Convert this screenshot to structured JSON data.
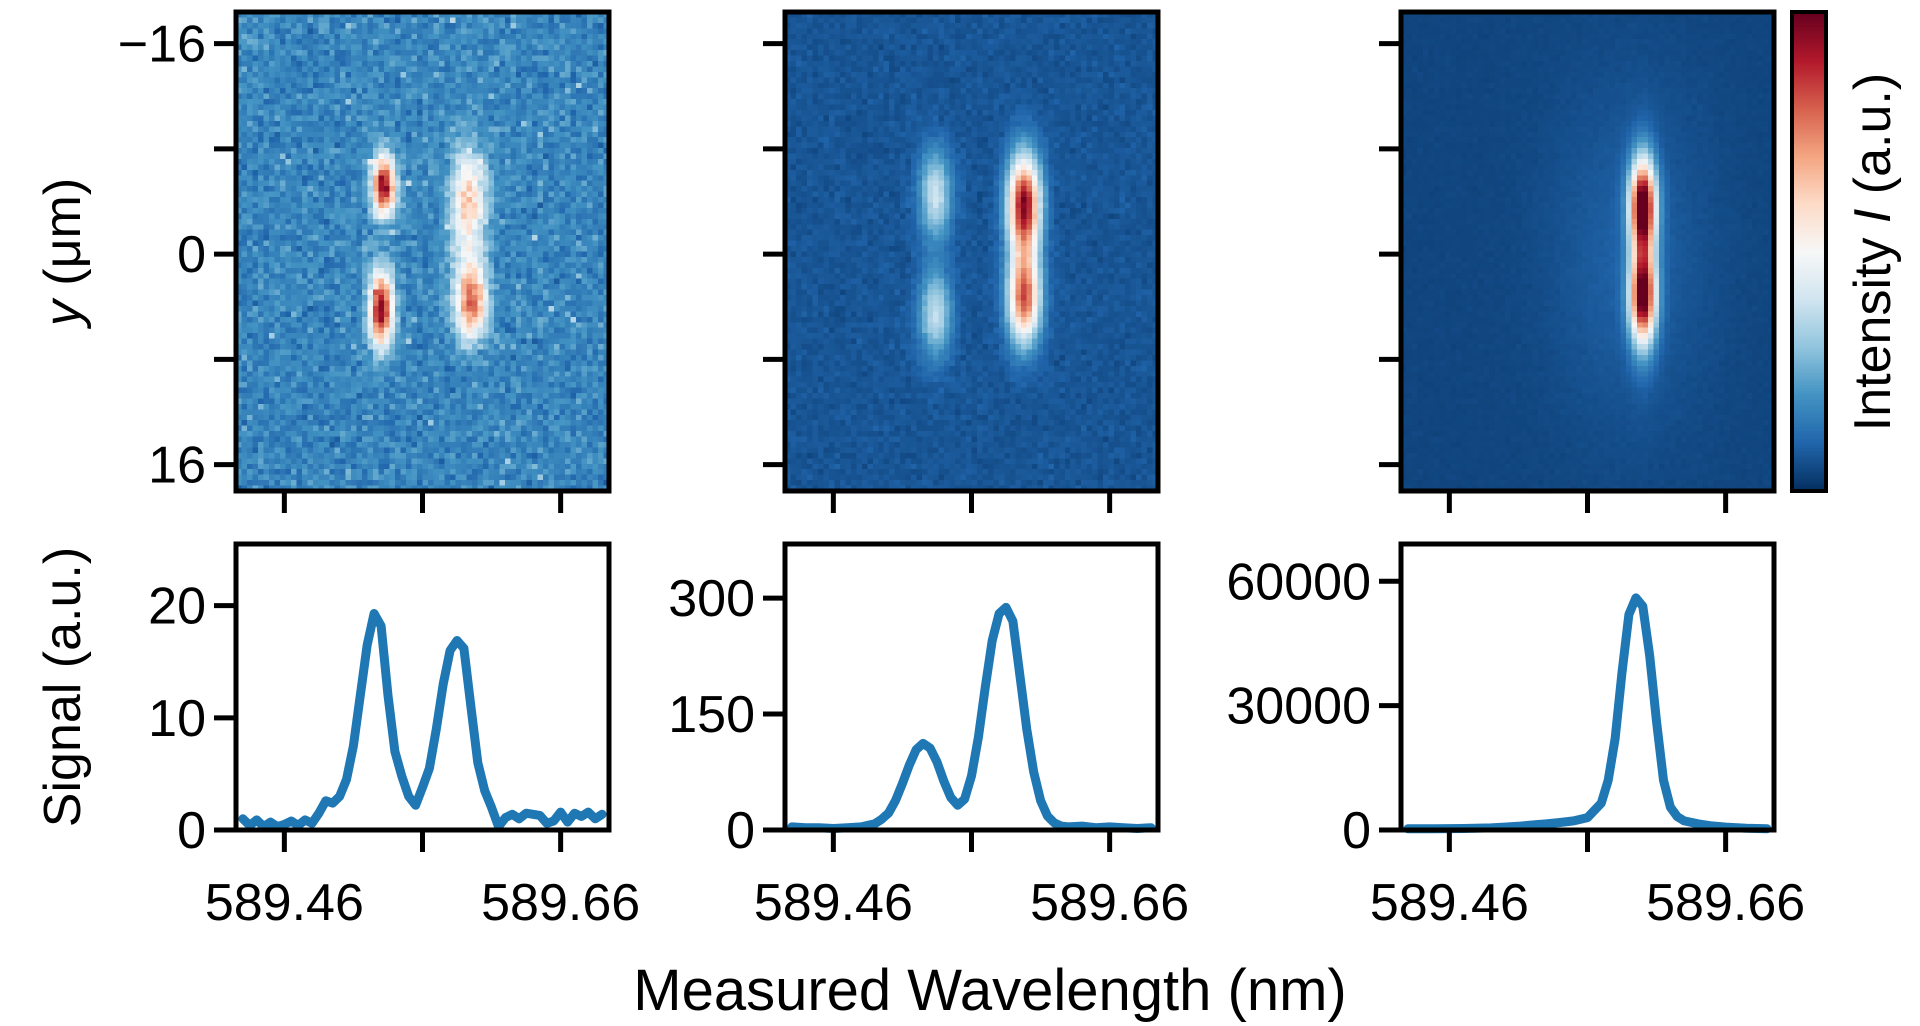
{
  "figure": {
    "xlabel": "Measured Wavelength (nm)",
    "top_ylabel_var": "y",
    "top_ylabel_unit": " (μm)",
    "bottom_ylabel": "Signal (a.u.)",
    "colorbar_label_pre": "Intensity ",
    "colorbar_label_var": "I",
    "colorbar_label_post": " (a.u.)",
    "line_color": "#1f77b4",
    "colormap": "RdBu_r"
  },
  "chart_data": [
    {
      "type": "heatmap",
      "panel": "top-left",
      "xlim": [
        589.425,
        589.695
      ],
      "ylim": [
        -18.4,
        18
      ],
      "xticks": [
        589.46,
        589.56,
        589.66
      ],
      "yticks": [
        -16,
        -8,
        0,
        8,
        16
      ],
      "yticklabels": [
        "−16",
        "",
        "0",
        "",
        "16"
      ],
      "background": 0.17,
      "noise": 0.05,
      "features": [
        {
          "x": 589.532,
          "y": -5.2,
          "sx": 0.006,
          "sy": 1.6,
          "amp": 0.8
        },
        {
          "x": 589.53,
          "y": 4.2,
          "sx": 0.006,
          "sy": 2.0,
          "amp": 0.8
        },
        {
          "x": 589.593,
          "y": -3.8,
          "sx": 0.009,
          "sy": 3.0,
          "amp": 0.45
        },
        {
          "x": 589.595,
          "y": 3.6,
          "sx": 0.008,
          "sy": 2.0,
          "amp": 0.62
        }
      ]
    },
    {
      "type": "heatmap",
      "panel": "top-middle",
      "xlim": [
        589.425,
        589.695
      ],
      "ylim": [
        -18.4,
        18
      ],
      "xticks": [
        589.46,
        589.56,
        589.66
      ],
      "yticks": [
        -16,
        -8,
        0,
        8,
        16
      ],
      "background": 0.07,
      "noise": 0.015,
      "features": [
        {
          "x": 589.534,
          "y": -4.5,
          "sx": 0.008,
          "sy": 2.3,
          "amp": 0.33
        },
        {
          "x": 589.534,
          "y": 4.5,
          "sx": 0.008,
          "sy": 2.3,
          "amp": 0.31
        },
        {
          "x": 589.598,
          "y": -3.7,
          "sx": 0.008,
          "sy": 2.6,
          "amp": 0.9
        },
        {
          "x": 589.598,
          "y": 3.3,
          "sx": 0.008,
          "sy": 2.4,
          "amp": 0.75
        }
      ]
    },
    {
      "type": "heatmap",
      "panel": "top-right",
      "xlim": [
        589.425,
        589.695
      ],
      "ylim": [
        -18.4,
        18
      ],
      "xticks": [
        589.46,
        589.56,
        589.66
      ],
      "yticks": [
        -16,
        -8,
        0,
        8,
        16
      ],
      "background": 0.04,
      "noise": 0.004,
      "features": [
        {
          "x": 589.6,
          "y": -3.7,
          "sx": 0.0065,
          "sy": 2.4,
          "amp": 0.92
        },
        {
          "x": 589.6,
          "y": 3.3,
          "sx": 0.0065,
          "sy": 2.4,
          "amp": 0.85
        },
        {
          "x": 589.6,
          "y": 0,
          "sx": 0.006,
          "sy": 4.5,
          "amp": 0.2
        },
        {
          "x": 589.59,
          "y": 0,
          "sx": 0.04,
          "sy": 9,
          "amp": 0.05
        }
      ]
    },
    {
      "type": "line",
      "panel": "bottom-left",
      "xlim": [
        589.425,
        589.695
      ],
      "ylim": [
        0,
        25.5
      ],
      "xticks": [
        589.46,
        589.56,
        589.66
      ],
      "xticklabels": [
        "589.46",
        "",
        "589.66"
      ],
      "yticks": [
        0,
        10,
        20
      ],
      "yticklabels": [
        "0",
        "10",
        "20"
      ],
      "x": [
        589.43,
        589.435,
        589.44,
        589.445,
        589.45,
        589.455,
        589.46,
        589.465,
        589.47,
        589.475,
        589.48,
        589.485,
        589.49,
        589.495,
        589.5,
        589.505,
        589.51,
        589.515,
        589.52,
        589.525,
        589.53,
        589.535,
        589.54,
        589.545,
        589.55,
        589.555,
        589.56,
        589.565,
        589.57,
        589.575,
        589.58,
        589.585,
        589.59,
        589.595,
        589.6,
        589.605,
        589.61,
        589.615,
        589.62,
        589.625,
        589.63,
        589.635,
        589.64,
        589.645,
        589.65,
        589.655,
        589.66,
        589.665,
        589.67,
        589.675,
        589.68,
        589.685,
        589.69
      ],
      "y": [
        1.0,
        0.4,
        0.9,
        0.3,
        0.7,
        0.3,
        0.5,
        0.8,
        0.4,
        0.9,
        0.6,
        1.5,
        2.6,
        2.4,
        3.0,
        4.5,
        7.5,
        12,
        16.5,
        19.3,
        18.2,
        12,
        7.0,
        4.8,
        3.0,
        2.2,
        3.8,
        5.5,
        9,
        13,
        16,
        16.9,
        16.2,
        11,
        6,
        3.5,
        2.0,
        0.3,
        1.1,
        1.4,
        1.0,
        1.5,
        1.4,
        1.3,
        0.6,
        0.8,
        1.6,
        0.7,
        1.5,
        1.2,
        1.6,
        1.0,
        1.4
      ]
    },
    {
      "type": "line",
      "panel": "bottom-middle",
      "xlim": [
        589.425,
        589.695
      ],
      "ylim": [
        0,
        370
      ],
      "xticks": [
        589.46,
        589.56,
        589.66
      ],
      "xticklabels": [
        "589.46",
        "",
        "589.66"
      ],
      "yticks": [
        0,
        150,
        300
      ],
      "yticklabels": [
        "0",
        "150",
        "300"
      ],
      "x": [
        589.43,
        589.44,
        589.45,
        589.46,
        589.47,
        589.48,
        589.49,
        589.495,
        589.5,
        589.505,
        589.51,
        589.515,
        589.52,
        589.525,
        589.53,
        589.535,
        589.54,
        589.545,
        589.55,
        589.555,
        589.56,
        589.565,
        589.57,
        589.575,
        589.58,
        589.585,
        589.59,
        589.595,
        589.6,
        589.605,
        589.61,
        589.615,
        589.62,
        589.625,
        589.63,
        589.64,
        589.65,
        589.66,
        589.67,
        589.68,
        589.69
      ],
      "y": [
        4,
        3,
        3,
        2,
        3,
        4,
        8,
        14,
        22,
        38,
        60,
        84,
        104,
        112,
        106,
        88,
        63,
        42,
        32,
        40,
        70,
        120,
        185,
        245,
        280,
        288,
        270,
        200,
        130,
        75,
        38,
        18,
        9,
        5,
        4,
        5,
        3,
        4,
        3,
        2,
        3
      ]
    },
    {
      "type": "line",
      "panel": "bottom-right",
      "xlim": [
        589.425,
        589.695
      ],
      "ylim": [
        0,
        69000
      ],
      "xticks": [
        589.46,
        589.56,
        589.66
      ],
      "xticklabels": [
        "589.46",
        "",
        "589.66"
      ],
      "yticks": [
        0,
        30000,
        60000
      ],
      "yticklabels": [
        "0",
        "30000",
        "60000"
      ],
      "x": [
        589.43,
        589.45,
        589.47,
        589.49,
        589.5,
        589.51,
        589.52,
        589.53,
        589.54,
        589.55,
        589.56,
        589.57,
        589.575,
        589.58,
        589.585,
        589.59,
        589.595,
        589.6,
        589.605,
        589.61,
        589.615,
        589.62,
        589.625,
        589.63,
        589.64,
        589.65,
        589.66,
        589.675,
        589.69
      ],
      "y": [
        300,
        300,
        350,
        500,
        700,
        900,
        1200,
        1500,
        1800,
        2200,
        3000,
        6500,
        12000,
        22000,
        38000,
        52000,
        56000,
        54000,
        42000,
        26000,
        12000,
        5500,
        3200,
        2200,
        1500,
        1000,
        700,
        400,
        300
      ]
    }
  ]
}
